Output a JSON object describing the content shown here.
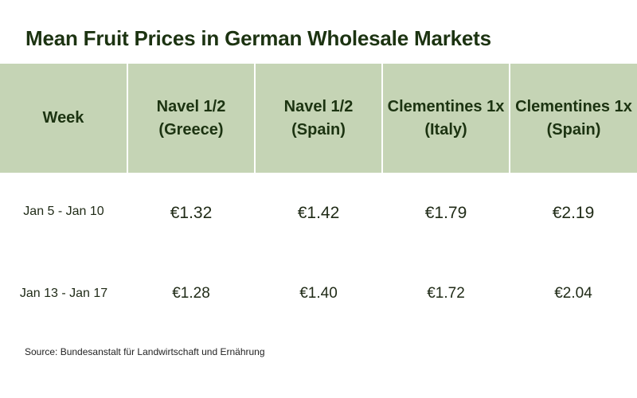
{
  "title": "Mean Fruit Prices in German Wholesale Markets",
  "source": "Source: Bundesanstalt für Landwirtschaft und Ernährung",
  "colors": {
    "header_background": "#c5d4b5",
    "title_color": "#1c3311",
    "text_color": "#1f2a16"
  },
  "chart_data": {
    "type": "table",
    "title": "Mean Fruit Prices in German Wholesale Markets",
    "columns": [
      "Week",
      "Navel 1/2 (Greece)",
      "Navel 1/2 (Spain)",
      "Clementines 1x (Italy)",
      "Clementines 1x (Spain)"
    ],
    "rows": [
      {
        "week": "Jan 5 - Jan 10",
        "values": [
          "€1.32",
          "€1.42",
          "€1.79",
          "€2.19"
        ]
      },
      {
        "week": "Jan 13 - Jan 17",
        "values": [
          "€1.28",
          "€1.40",
          "€1.72",
          "€2.04"
        ]
      }
    ]
  }
}
